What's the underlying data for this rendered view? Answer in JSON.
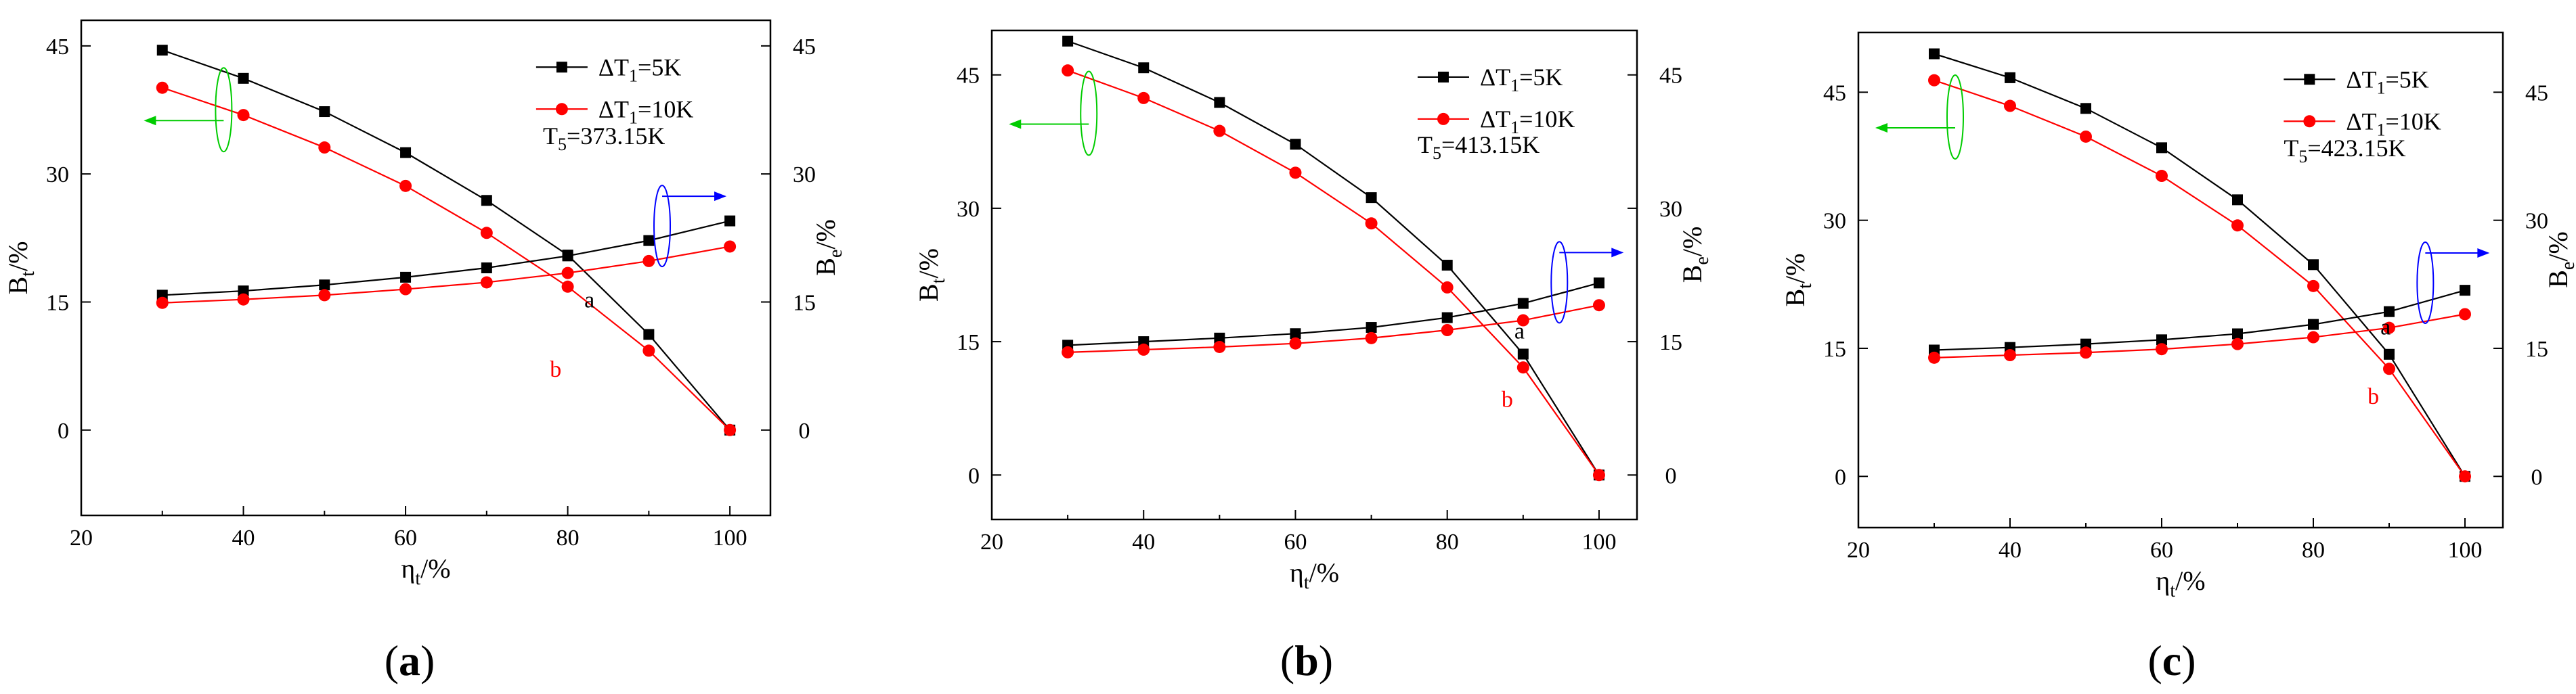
{
  "chart_data": [
    {
      "type": "line",
      "panel": "a",
      "caption_letter": "a",
      "x": [
        30,
        40,
        50,
        60,
        70,
        80,
        90,
        100
      ],
      "xlabel": "η",
      "xlabel_sub": "t",
      "xlabel_unit": "/%",
      "ylabel_left": "B",
      "ylabel_left_sub": "t",
      "ylabel_left_unit": "/%",
      "ylabel_right": "B",
      "ylabel_right_sub": "e",
      "ylabel_right_unit": "/%",
      "xlim": [
        20,
        105
      ],
      "ylim_left": [
        -10,
        48
      ],
      "ylim_right": [
        -10,
        48
      ],
      "xticks": [
        "20",
        "40",
        "60",
        "80",
        "100"
      ],
      "xtick_values": [
        20,
        40,
        60,
        80,
        100
      ],
      "yticks_left": [
        "0",
        "15",
        "30",
        "45"
      ],
      "ytick_values": [
        0,
        15,
        30,
        45
      ],
      "yticks_right": [
        "0",
        "15",
        "30",
        "45"
      ],
      "temperature_prefix": "T",
      "temperature_sub": "5",
      "temperature_value": "=373.15K",
      "series": [
        {
          "name": "ΔT1=5K",
          "legend_main": "ΔT",
          "legend_sub": "1",
          "legend_tail": "=5K",
          "color": "#000000",
          "marker": "square",
          "axis": "left",
          "values": [
            44.5,
            41.2,
            37.3,
            32.5,
            26.9,
            20.5,
            11.2,
            0
          ]
        },
        {
          "name": "ΔT1=10K",
          "legend_main": "ΔT",
          "legend_sub": "1",
          "legend_tail": "=10K",
          "color": "#ff0000",
          "marker": "circle",
          "axis": "left",
          "values": [
            40.1,
            36.9,
            33.1,
            28.6,
            23.1,
            16.8,
            9.3,
            0
          ]
        },
        {
          "name": "ΔT1=5K",
          "color": "#000000",
          "marker": "square",
          "axis": "right",
          "values": [
            15.8,
            16.3,
            17.0,
            17.9,
            19.0,
            20.4,
            22.2,
            24.5
          ]
        },
        {
          "name": "ΔT1=10K",
          "color": "#ff0000",
          "marker": "circle",
          "axis": "right",
          "values": [
            14.9,
            15.3,
            15.8,
            16.5,
            17.3,
            18.4,
            19.8,
            21.5
          ]
        }
      ],
      "annotations": {
        "a": "a",
        "b": "b"
      }
    },
    {
      "type": "line",
      "panel": "b",
      "caption_letter": "b",
      "x": [
        30,
        40,
        50,
        60,
        70,
        80,
        90,
        100
      ],
      "xlabel": "η",
      "xlabel_sub": "t",
      "xlabel_unit": "/%",
      "ylabel_left": "B",
      "ylabel_left_sub": "t",
      "ylabel_left_unit": "/%",
      "ylabel_right": "B",
      "ylabel_right_sub": "e",
      "ylabel_right_unit": "/%",
      "xlim": [
        20,
        105
      ],
      "ylim_left": [
        -5,
        50
      ],
      "ylim_right": [
        -5,
        50
      ],
      "xticks": [
        "20",
        "40",
        "60",
        "80",
        "100"
      ],
      "xtick_values": [
        20,
        40,
        60,
        80,
        100
      ],
      "yticks_left": [
        "0",
        "15",
        "30",
        "45"
      ],
      "ytick_values": [
        0,
        15,
        30,
        45
      ],
      "yticks_right": [
        "0",
        "15",
        "30",
        "45"
      ],
      "temperature_prefix": "T",
      "temperature_sub": "5",
      "temperature_value": "=413.15K",
      "series": [
        {
          "name": "ΔT1=5K",
          "legend_main": "ΔT",
          "legend_sub": "1",
          "legend_tail": "=5K",
          "color": "#000000",
          "marker": "square",
          "axis": "left",
          "values": [
            48.8,
            45.8,
            41.9,
            37.2,
            31.2,
            23.6,
            13.6,
            0
          ]
        },
        {
          "name": "ΔT1=10K",
          "legend_main": "ΔT",
          "legend_sub": "1",
          "legend_tail": "=10K",
          "color": "#ff0000",
          "marker": "circle",
          "axis": "left",
          "values": [
            45.5,
            42.4,
            38.7,
            34.0,
            28.3,
            21.1,
            12.1,
            0
          ]
        },
        {
          "name": "ΔT1=5K",
          "color": "#000000",
          "marker": "square",
          "axis": "right",
          "values": [
            14.6,
            15.0,
            15.4,
            15.9,
            16.6,
            17.7,
            19.3,
            21.6
          ]
        },
        {
          "name": "ΔT1=10K",
          "color": "#ff0000",
          "marker": "circle",
          "axis": "right",
          "values": [
            13.8,
            14.1,
            14.4,
            14.8,
            15.4,
            16.3,
            17.4,
            19.1
          ]
        }
      ],
      "annotations": {
        "a": "a",
        "b": "b"
      }
    },
    {
      "type": "line",
      "panel": "c",
      "caption_letter": "c",
      "x": [
        30,
        40,
        50,
        60,
        70,
        80,
        90,
        100
      ],
      "xlabel": "η",
      "xlabel_sub": "t",
      "xlabel_unit": "/%",
      "ylabel_left": "B",
      "ylabel_left_sub": "t",
      "ylabel_left_unit": "/%",
      "ylabel_right": "B",
      "ylabel_right_sub": "e",
      "ylabel_right_unit": "/%",
      "xlim": [
        20,
        105
      ],
      "ylim_left": [
        -6,
        52
      ],
      "ylim_right": [
        -6,
        52
      ],
      "xticks": [
        "20",
        "40",
        "60",
        "80",
        "100"
      ],
      "xtick_values": [
        20,
        40,
        60,
        80,
        100
      ],
      "yticks_left": [
        "0",
        "15",
        "30",
        "45"
      ],
      "ytick_values": [
        0,
        15,
        30,
        45
      ],
      "yticks_right": [
        "0",
        "15",
        "30",
        "45"
      ],
      "temperature_prefix": "T",
      "temperature_sub": "5",
      "temperature_value": "=423.15K",
      "series": [
        {
          "name": "ΔT1=5K",
          "legend_main": "ΔT",
          "legend_sub": "1",
          "legend_tail": "=5K",
          "color": "#000000",
          "marker": "square",
          "axis": "left",
          "values": [
            49.5,
            46.7,
            43.1,
            38.5,
            32.4,
            24.8,
            14.3,
            0
          ]
        },
        {
          "name": "ΔT1=10K",
          "legend_main": "ΔT",
          "legend_sub": "1",
          "legend_tail": "=10K",
          "color": "#ff0000",
          "marker": "circle",
          "axis": "left",
          "values": [
            46.4,
            43.4,
            39.8,
            35.2,
            29.4,
            22.3,
            12.6,
            0
          ]
        },
        {
          "name": "ΔT1=5K",
          "color": "#000000",
          "marker": "square",
          "axis": "right",
          "values": [
            14.8,
            15.1,
            15.5,
            16.0,
            16.7,
            17.8,
            19.3,
            21.8
          ]
        },
        {
          "name": "ΔT1=10K",
          "color": "#ff0000",
          "marker": "circle",
          "axis": "right",
          "values": [
            13.9,
            14.2,
            14.5,
            14.9,
            15.5,
            16.3,
            17.4,
            19.0
          ]
        }
      ],
      "annotations": {
        "a": "a",
        "b": "b"
      }
    }
  ],
  "colors": {
    "series_black": "#000000",
    "series_red": "#ff0000",
    "indicator_green": "#00cc00",
    "indicator_blue": "#0000ff"
  }
}
